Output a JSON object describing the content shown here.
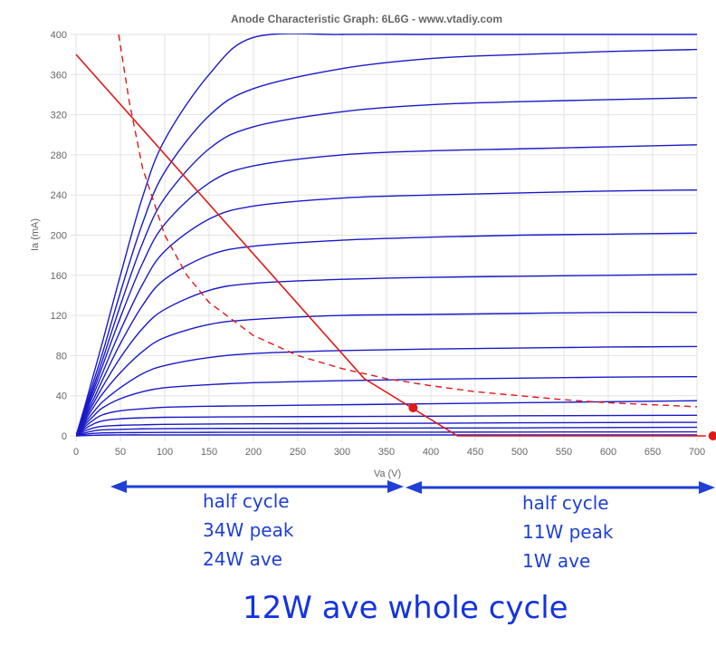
{
  "chart_data": {
    "type": "line",
    "title": "Anode Characteristic Graph: 6L6G - www.vtadiy.com",
    "xlabel": "Va (V)",
    "ylabel": "Ia (mA)",
    "xlim": [
      0,
      700
    ],
    "ylim": [
      0,
      400
    ],
    "xticks": [
      0,
      50,
      100,
      150,
      200,
      250,
      300,
      350,
      400,
      450,
      500,
      550,
      600,
      650,
      700
    ],
    "yticks": [
      0,
      40,
      80,
      120,
      160,
      200,
      240,
      280,
      320,
      360,
      400
    ],
    "grid": true,
    "legend": "none",
    "colors": {
      "curves": "#1a1ac8",
      "load": "#e01818",
      "arrows": "#1f3fd6"
    },
    "anode_curves": {
      "va": [
        0,
        10,
        20,
        30,
        50,
        75,
        100,
        150,
        200,
        300,
        400,
        500,
        600,
        700
      ],
      "series": [
        {
          "ia": [
            0,
            0.3,
            0.6,
            0.8,
            1,
            1,
            1,
            1,
            1,
            1,
            1,
            1,
            1,
            1
          ]
        },
        {
          "ia": [
            0,
            1.5,
            2.5,
            3,
            3.2,
            3.3,
            3.4,
            3.5,
            3.6,
            3.6,
            3.7,
            3.8,
            3.9,
            4
          ]
        },
        {
          "ia": [
            0,
            3,
            5,
            6,
            6.5,
            7,
            7.2,
            7.4,
            7.5,
            7.6,
            7.8,
            8,
            8.3,
            8.5
          ]
        },
        {
          "ia": [
            0,
            5,
            8,
            9.5,
            10.5,
            11,
            11.5,
            11.8,
            12,
            12.3,
            12.6,
            13,
            13.3,
            13.5
          ]
        },
        {
          "ia": [
            0,
            7,
            12,
            15,
            17,
            18,
            18.5,
            18.8,
            19,
            19.3,
            19.6,
            20,
            20.3,
            20.5
          ]
        },
        {
          "ia": [
            0,
            9,
            16,
            21,
            25,
            27,
            28.5,
            29.5,
            30,
            31,
            32,
            33,
            34,
            35
          ]
        },
        {
          "ia": [
            0,
            11,
            20,
            28,
            37,
            44,
            48,
            51,
            53,
            55,
            56.5,
            57.5,
            58.5,
            59
          ]
        },
        {
          "ia": [
            0,
            13,
            24,
            34,
            48,
            62,
            70,
            78,
            82,
            85,
            86.5,
            87.5,
            88.5,
            89
          ]
        },
        {
          "ia": [
            0,
            15,
            29,
            42,
            63,
            84,
            98,
            111,
            116,
            120,
            121,
            122,
            123,
            123
          ]
        },
        {
          "ia": [
            0,
            17,
            33,
            49,
            78,
            107,
            126,
            145,
            152,
            156,
            158,
            159,
            160,
            161
          ]
        },
        {
          "ia": [
            0,
            19,
            37,
            56,
            92,
            130,
            156,
            180,
            189,
            195,
            198,
            200,
            201,
            202
          ]
        },
        {
          "ia": [
            0,
            21,
            42,
            63,
            105,
            151,
            184,
            216,
            229,
            237,
            240,
            242,
            244,
            245
          ]
        },
        {
          "ia": [
            0,
            23,
            46,
            70,
            118,
            172,
            211,
            252,
            269,
            280,
            284,
            286,
            288,
            290
          ]
        },
        {
          "ia": [
            0,
            25,
            50,
            76,
            130,
            192,
            237,
            286,
            308,
            323,
            330,
            333,
            335,
            337
          ]
        },
        {
          "ia": [
            0,
            27,
            55,
            83,
            143,
            212,
            263,
            319,
            346,
            366,
            376,
            380,
            383,
            385
          ]
        },
        {
          "ia": [
            0,
            30,
            62,
            94,
            160,
            238,
            295,
            360,
            397,
            400,
            400,
            400,
            400,
            400
          ]
        }
      ]
    },
    "load_line": {
      "va": [
        0,
        325,
        430,
        710
      ],
      "ia": [
        380,
        57,
        0,
        0
      ]
    },
    "dissipation_curve": {
      "va": [
        48,
        60,
        75,
        100,
        125,
        150,
        200,
        250,
        300,
        350,
        400,
        450,
        500,
        550,
        600,
        650,
        700
      ],
      "ia": [
        400,
        333,
        267,
        200,
        160,
        133,
        100,
        80,
        67,
        57,
        50,
        44,
        40,
        36,
        33,
        31,
        29
      ]
    },
    "points": [
      {
        "va": 380,
        "ia": 28
      },
      {
        "va": 718,
        "ia": 0
      }
    ]
  },
  "annotations": {
    "left": [
      "half cycle",
      "34W peak",
      "24W ave"
    ],
    "right": [
      "half cycle",
      "11W peak",
      "1W ave"
    ],
    "total": "12W ave whole cycle"
  }
}
